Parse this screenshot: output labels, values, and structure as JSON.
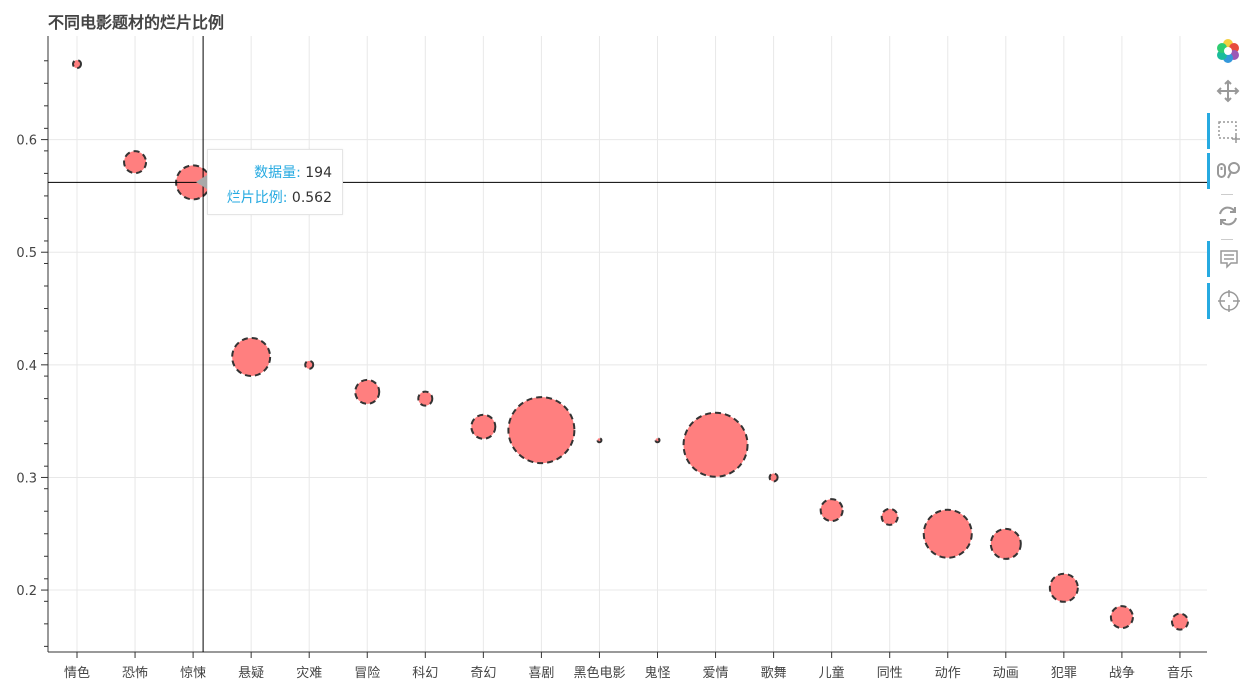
{
  "chart_data": {
    "type": "scatter",
    "title": "不同电影题材的烂片比例",
    "xlabel": "",
    "ylabel": "",
    "categories": [
      "情色",
      "恐怖",
      "惊悚",
      "悬疑",
      "灾难",
      "冒险",
      "科幻",
      "奇幻",
      "喜剧",
      "黑色电影",
      "鬼怪",
      "爱情",
      "歌舞",
      "儿童",
      "同性",
      "动作",
      "动画",
      "犯罪",
      "战争",
      "音乐"
    ],
    "values": [
      0.667,
      0.58,
      0.562,
      0.407,
      0.4,
      0.376,
      0.37,
      0.345,
      0.342,
      0.333,
      0.333,
      0.329,
      0.3,
      0.271,
      0.265,
      0.25,
      0.241,
      0.202,
      0.176,
      0.172
    ],
    "bubble_size": "数据量",
    "y_ticks": [
      0.2,
      0.3,
      0.4,
      0.5,
      0.6
    ],
    "ylim": [
      0.145,
      0.692
    ],
    "grid": true,
    "marker": {
      "fill": "#ff7f7f",
      "outline": "#333333",
      "outline_style": "dashed"
    },
    "crosshair": {
      "category": "惊悚",
      "y": 0.562
    }
  },
  "tooltip": {
    "count_key": "数据量:",
    "count_value": "194",
    "ratio_key": "烂片比例:",
    "ratio_value": "0.562"
  },
  "toolbar": {
    "tools": [
      "bokeh-logo-icon",
      "pan-icon",
      "box-zoom-icon",
      "wheel-zoom-icon",
      "reset-icon",
      "hover-icon",
      "crosshair-icon"
    ],
    "accent": "#26aae1"
  }
}
